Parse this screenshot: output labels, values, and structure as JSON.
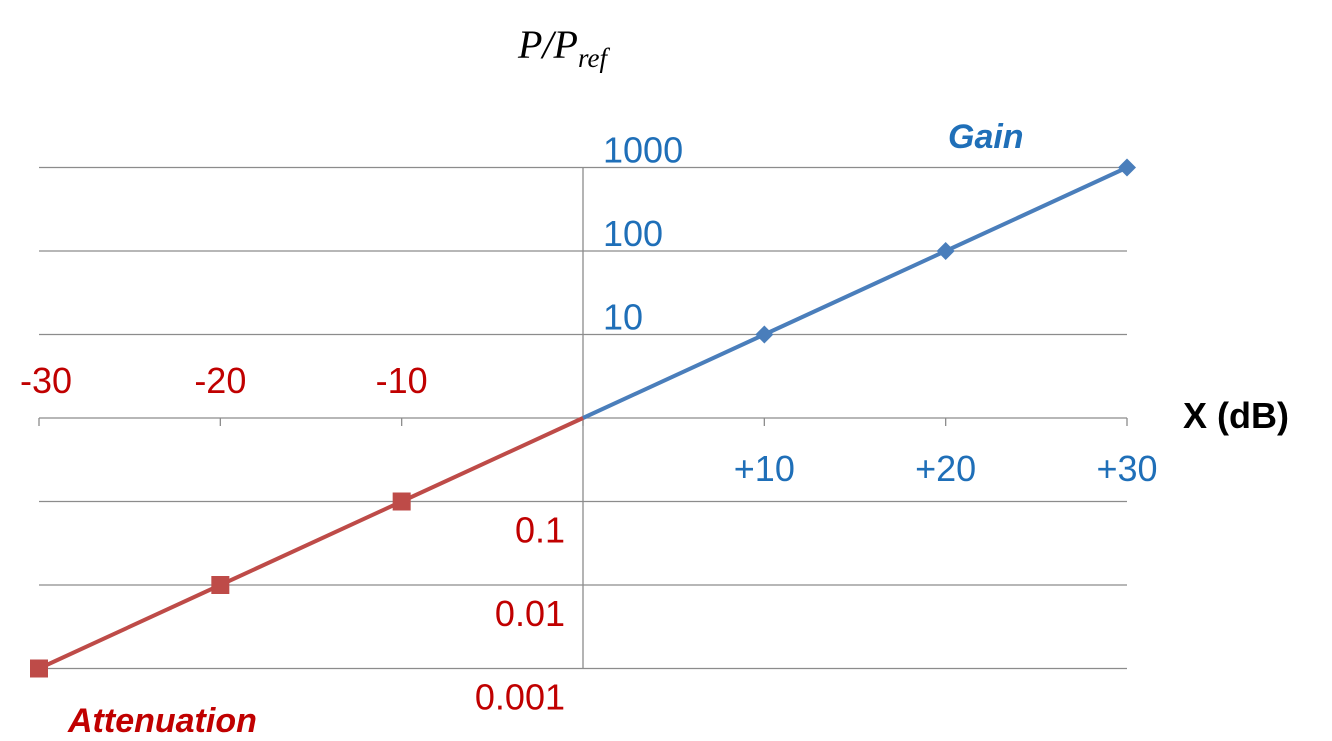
{
  "chart_data": {
    "type": "line",
    "ytitle": {
      "main": "P/P",
      "sub": "ref"
    },
    "xlabel": "X (dB)",
    "xlim": [
      -30,
      30
    ],
    "yscale": "log",
    "ylim": [
      0.001,
      1000
    ],
    "grid": true,
    "colors": {
      "gain": "#4a7ebb",
      "attenuation": "#be4b48",
      "gain_text": "#1f6fb8",
      "attenuation_text": "#c00000",
      "grid": "#8c8c8c"
    },
    "series": [
      {
        "name": "Gain",
        "x": [
          0,
          10,
          20,
          30
        ],
        "y": [
          1,
          10,
          100,
          1000
        ],
        "marker": "diamond"
      },
      {
        "name": "Attenuation",
        "x": [
          -30,
          -20,
          -10,
          0
        ],
        "y": [
          0.001,
          0.01,
          0.1,
          1
        ],
        "marker": "square"
      }
    ],
    "x_ticks_positive": [
      {
        "value": 10,
        "label": "+10"
      },
      {
        "value": 20,
        "label": "+20"
      },
      {
        "value": 30,
        "label": "+30"
      }
    ],
    "x_ticks_negative": [
      {
        "value": -30,
        "label": "-30"
      },
      {
        "value": -20,
        "label": "-20"
      },
      {
        "value": -10,
        "label": "-10"
      }
    ],
    "y_ticks_positive": [
      {
        "value": 10,
        "label": "10"
      },
      {
        "value": 100,
        "label": "100"
      },
      {
        "value": 1000,
        "label": "1000"
      }
    ],
    "y_ticks_negative": [
      {
        "value": 0.1,
        "label": "0.1"
      },
      {
        "value": 0.01,
        "label": "0.01"
      },
      {
        "value": 0.001,
        "label": "0.001"
      }
    ]
  }
}
